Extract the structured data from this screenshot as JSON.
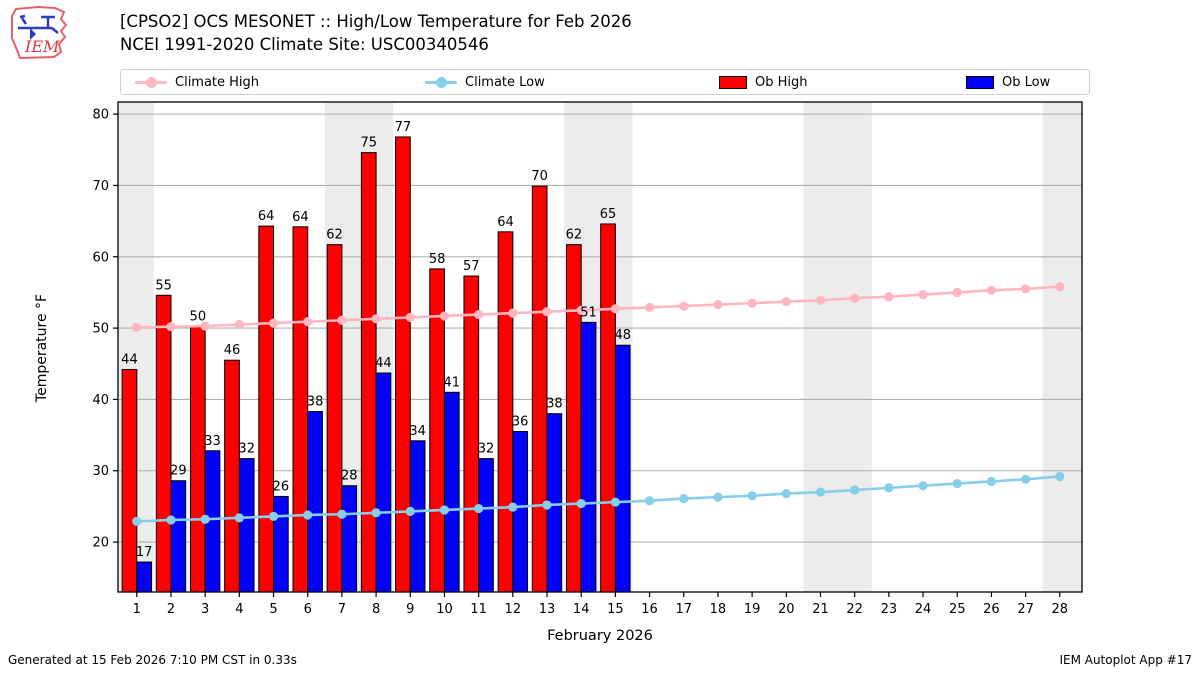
{
  "header": {
    "title_line1": "[CPSO2] OCS MESONET :: High/Low Temperature for Feb 2026",
    "title_line2": "NCEI 1991-2020 Climate Site: USC00340546",
    "logo_text": "IEM"
  },
  "legend": {
    "items": [
      {
        "label": "Climate High",
        "type": "line",
        "color": "#ffb6c1"
      },
      {
        "label": "Climate Low",
        "type": "line",
        "color": "#87ceeb"
      },
      {
        "label": "Ob High",
        "type": "swatch",
        "color": "#ff0000"
      },
      {
        "label": "Ob Low",
        "type": "swatch",
        "color": "#0000ff"
      }
    ]
  },
  "footer": {
    "left": "Generated at 15 Feb 2026 7:10 PM CST in 0.33s",
    "right": "IEM Autoplot App #17"
  },
  "chart_data": {
    "type": "bar",
    "title": "[CPSO2] OCS MESONET :: High/Low Temperature for Feb 2026",
    "xlabel": "February 2026",
    "ylabel": "Temperature °F",
    "x_ticks": [
      1,
      2,
      3,
      4,
      5,
      6,
      7,
      8,
      9,
      10,
      11,
      12,
      13,
      14,
      15,
      16,
      17,
      18,
      19,
      20,
      21,
      22,
      23,
      24,
      25,
      26,
      27,
      28
    ],
    "y_ticks": [
      20,
      30,
      40,
      50,
      60,
      70,
      80
    ],
    "xlim": [
      0.45,
      28.65
    ],
    "ylim": [
      13,
      81.7
    ],
    "grid": true,
    "gridline_color": "#b0b0b0",
    "weekend_band_color": "#ececec",
    "weekend_bands": [
      [
        0.45,
        1.5
      ],
      [
        6.5,
        8.5
      ],
      [
        13.5,
        15.5
      ],
      [
        20.5,
        22.5
      ],
      [
        27.5,
        28.65
      ]
    ],
    "observed_days": [
      1,
      2,
      3,
      4,
      5,
      6,
      7,
      8,
      9,
      10,
      11,
      12,
      13,
      14,
      15
    ],
    "series": [
      {
        "name": "Ob High",
        "type": "bar",
        "color": "#ff0000",
        "values": [
          44,
          55,
          50,
          46,
          64,
          64,
          62,
          75,
          77,
          58,
          57,
          64,
          70,
          62,
          65
        ],
        "bar_tops": [
          44.2,
          54.6,
          50.2,
          45.5,
          64.3,
          64.2,
          61.7,
          74.6,
          76.8,
          58.3,
          57.3,
          63.5,
          69.9,
          61.7,
          64.6
        ]
      },
      {
        "name": "Ob Low",
        "type": "bar",
        "color": "#0000ff",
        "values": [
          17,
          29,
          33,
          32,
          26,
          38,
          28,
          44,
          34,
          41,
          32,
          36,
          38,
          51,
          48
        ],
        "bar_tops": [
          17.2,
          28.6,
          32.8,
          31.7,
          26.4,
          38.3,
          27.9,
          43.7,
          34.2,
          41.0,
          31.7,
          35.5,
          38.0,
          50.8,
          47.6
        ]
      },
      {
        "name": "Climate High",
        "type": "line",
        "color": "#ffb6c1",
        "x": [
          1,
          2,
          3,
          4,
          5,
          6,
          7,
          8,
          9,
          10,
          11,
          12,
          13,
          14,
          15,
          16,
          17,
          18,
          19,
          20,
          21,
          22,
          23,
          24,
          25,
          26,
          27,
          28
        ],
        "values": [
          50.1,
          50.2,
          50.3,
          50.5,
          50.7,
          50.9,
          51.1,
          51.3,
          51.5,
          51.7,
          51.9,
          52.1,
          52.3,
          52.5,
          52.7,
          52.9,
          53.1,
          53.3,
          53.5,
          53.7,
          53.9,
          54.2,
          54.4,
          54.7,
          55.0,
          55.3,
          55.5,
          55.8
        ]
      },
      {
        "name": "Climate Low",
        "type": "line",
        "color": "#87ceeb",
        "x": [
          1,
          2,
          3,
          4,
          5,
          6,
          7,
          8,
          9,
          10,
          11,
          12,
          13,
          14,
          15,
          16,
          17,
          18,
          19,
          20,
          21,
          22,
          23,
          24,
          25,
          26,
          27,
          28
        ],
        "values": [
          22.9,
          23.1,
          23.2,
          23.4,
          23.6,
          23.8,
          23.9,
          24.1,
          24.3,
          24.5,
          24.7,
          24.9,
          25.2,
          25.4,
          25.6,
          25.8,
          26.1,
          26.3,
          26.5,
          26.8,
          27.0,
          27.3,
          27.6,
          27.9,
          28.2,
          28.5,
          28.8,
          29.2
        ]
      }
    ],
    "legend_position": "top"
  }
}
